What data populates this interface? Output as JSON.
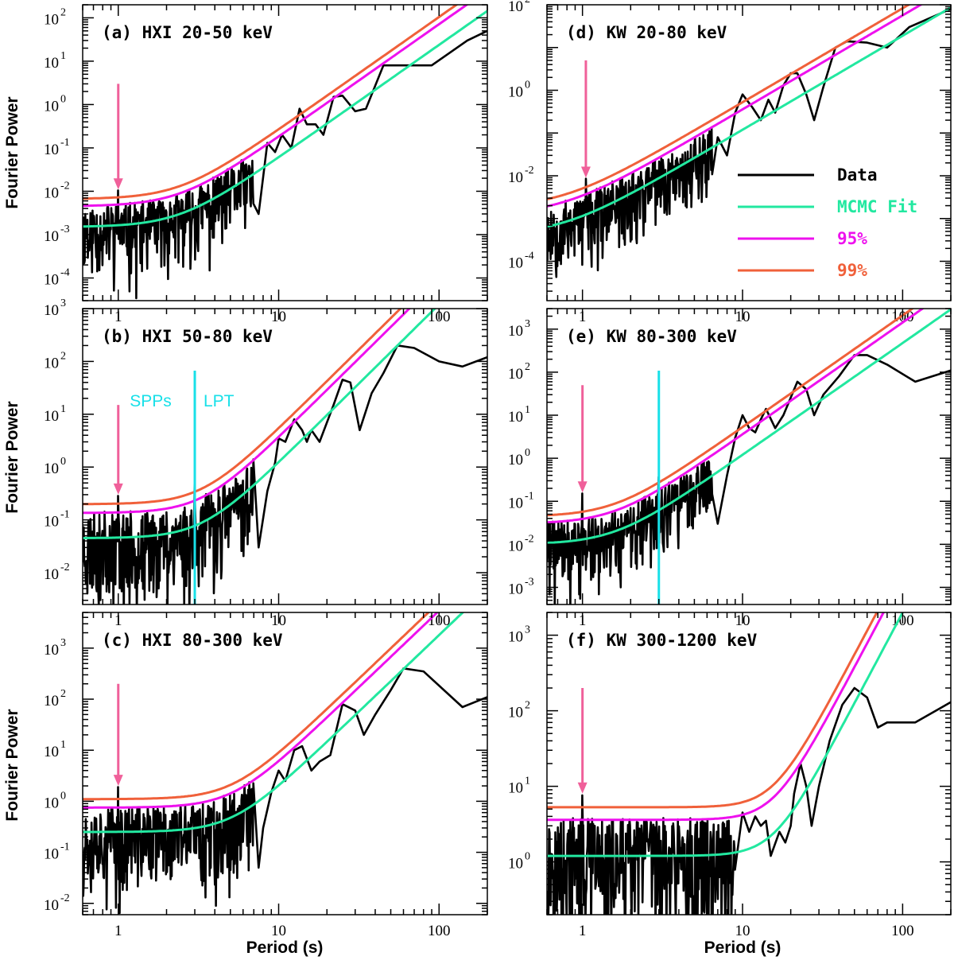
{
  "figure": {
    "xlabel": "Period (s)",
    "ylabel": "Fourier Power"
  },
  "colors": {
    "data": "#000000",
    "fit": "#22e8a0",
    "p95": "#ee11ee",
    "p99": "#f0603a",
    "arrow": "#f0609a",
    "boundary": "#18e0e8"
  },
  "legend": {
    "items": [
      {
        "label": "Data",
        "color": "#000000"
      },
      {
        "label": "MCMC Fit",
        "color": "#22e8a0"
      },
      {
        "label": "95%",
        "color": "#ee11ee"
      },
      {
        "label": "99%",
        "color": "#f0603a"
      }
    ]
  },
  "chart_data": [
    {
      "type": "line",
      "title": "(a) HXI 20-50 keV",
      "xscale": "log",
      "yscale": "log",
      "xlim": [
        0.6,
        200
      ],
      "ylim": [
        3e-05,
        200
      ],
      "xticks": [
        {
          "v": 1,
          "label": "1"
        },
        {
          "v": 10,
          "label": "10"
        },
        {
          "v": 100,
          "label": "100"
        }
      ],
      "yticks": [
        {
          "v": 0.0001,
          "b": "10",
          "e": "-4"
        },
        {
          "v": 0.001,
          "b": "10",
          "e": "-3"
        },
        {
          "v": 0.01,
          "b": "10",
          "e": "-2"
        },
        {
          "v": 0.1,
          "b": "10",
          "e": "-1"
        },
        {
          "v": 1,
          "b": "10",
          "e": "0"
        },
        {
          "v": 10,
          "b": "10",
          "e": "1"
        },
        {
          "v": 100,
          "b": "10",
          "e": "2"
        }
      ],
      "fit": {
        "C": 0.0015,
        "A": 0.00015,
        "alpha": 2.6
      },
      "arrow": {
        "x": 1.0,
        "from": 3,
        "to": 0.011
      },
      "data": {
        "noise": {
          "x0": 0.6,
          "x1": 7,
          "seed": 11
        },
        "peaks": [
          [
            7.5,
            0.003
          ],
          [
            8.5,
            0.13
          ],
          [
            9.5,
            0.08
          ],
          [
            10.5,
            0.2
          ],
          [
            12,
            0.1
          ],
          [
            13.5,
            0.8
          ],
          [
            15,
            0.35
          ],
          [
            17,
            0.35
          ],
          [
            19,
            0.2
          ],
          [
            22,
            1.5
          ],
          [
            25,
            1.6
          ],
          [
            30,
            0.7
          ],
          [
            35,
            0.8
          ],
          [
            45,
            8
          ],
          [
            60,
            8
          ],
          [
            80,
            8
          ],
          [
            90,
            8
          ],
          [
            150,
            30
          ],
          [
            200,
            50
          ]
        ]
      }
    },
    {
      "type": "line",
      "title": "(b) HXI 50-80 keV",
      "xscale": "log",
      "yscale": "log",
      "xlim": [
        0.6,
        200
      ],
      "ylim": [
        0.0025,
        1000
      ],
      "xticks": [
        {
          "v": 1,
          "label": "1"
        },
        {
          "v": 10,
          "label": "10"
        },
        {
          "v": 100,
          "label": "100"
        }
      ],
      "yticks": [
        {
          "v": 0.01,
          "b": "10",
          "e": "-2"
        },
        {
          "v": 0.1,
          "b": "10",
          "e": "-1"
        },
        {
          "v": 1,
          "b": "10",
          "e": "0"
        },
        {
          "v": 10,
          "b": "10",
          "e": "1"
        },
        {
          "v": 100,
          "b": "10",
          "e": "2"
        },
        {
          "v": 1000,
          "b": "10",
          "e": "3"
        }
      ],
      "fit": {
        "C": 0.045,
        "A": 0.0012,
        "alpha": 3.0
      },
      "arrow": {
        "x": 1.0,
        "from": 15,
        "to": 0.3
      },
      "vline": {
        "x": 3.0
      },
      "annotations": [
        {
          "text": "SPPs",
          "x": 1.18,
          "y": 14
        },
        {
          "text": "LPT",
          "x": 3.4,
          "y": 14
        }
      ],
      "data": {
        "noise": {
          "x0": 0.6,
          "x1": 7,
          "seed": 23
        },
        "peaks": [
          [
            7.5,
            0.03
          ],
          [
            8.5,
            0.35
          ],
          [
            9.5,
            1.2
          ],
          [
            10,
            3.5
          ],
          [
            11,
            3
          ],
          [
            12.5,
            8
          ],
          [
            14,
            5
          ],
          [
            15,
            3
          ],
          [
            16,
            5
          ],
          [
            18,
            3
          ],
          [
            22,
            15
          ],
          [
            25,
            45
          ],
          [
            28,
            40
          ],
          [
            32,
            5
          ],
          [
            38,
            25
          ],
          [
            45,
            60
          ],
          [
            55,
            200
          ],
          [
            70,
            180
          ],
          [
            100,
            100
          ],
          [
            140,
            80
          ],
          [
            200,
            120
          ]
        ]
      }
    },
    {
      "type": "line",
      "title": "(c) HXI 80-300 keV",
      "xscale": "log",
      "yscale": "log",
      "xlim": [
        0.6,
        200
      ],
      "ylim": [
        0.006,
        5000
      ],
      "xticks": [
        {
          "v": 1,
          "label": "1"
        },
        {
          "v": 10,
          "label": "10"
        },
        {
          "v": 100,
          "label": "100"
        }
      ],
      "yticks": [
        {
          "v": 0.01,
          "b": "10",
          "e": "-2"
        },
        {
          "v": 0.1,
          "b": "10",
          "e": "-1"
        },
        {
          "v": 1,
          "b": "10",
          "e": "0"
        },
        {
          "v": 10,
          "b": "10",
          "e": "1"
        },
        {
          "v": 100,
          "b": "10",
          "e": "2"
        },
        {
          "v": 1000,
          "b": "10",
          "e": "3"
        }
      ],
      "fit": {
        "C": 0.25,
        "A": 0.0018,
        "alpha": 3.0
      },
      "arrow": {
        "x": 1.0,
        "from": 200,
        "to": 2.0
      },
      "data": {
        "noise": {
          "x0": 0.6,
          "x1": 7,
          "seed": 37
        },
        "peaks": [
          [
            7.5,
            0.05
          ],
          [
            8,
            0.3
          ],
          [
            9,
            1.5
          ],
          [
            10,
            4
          ],
          [
            11,
            2.5
          ],
          [
            12.5,
            10
          ],
          [
            14,
            12
          ],
          [
            16,
            4
          ],
          [
            18,
            6
          ],
          [
            21,
            8
          ],
          [
            25,
            80
          ],
          [
            30,
            60
          ],
          [
            34,
            20
          ],
          [
            40,
            50
          ],
          [
            50,
            150
          ],
          [
            60,
            400
          ],
          [
            80,
            350
          ],
          [
            140,
            70
          ],
          [
            200,
            110
          ]
        ]
      }
    },
    {
      "type": "line",
      "title": "(d) KW 20-80 keV",
      "xscale": "log",
      "yscale": "log",
      "xlim": [
        0.6,
        200
      ],
      "ylim": [
        1.2e-05,
        100
      ],
      "xticks": [
        {
          "v": 1,
          "label": "1"
        },
        {
          "v": 10,
          "label": "10"
        },
        {
          "v": 100,
          "label": "100"
        }
      ],
      "yticks": [
        {
          "v": 0.0001,
          "b": "10",
          "e": "-4"
        },
        {
          "v": 0.01,
          "b": "10",
          "e": "-2"
        },
        {
          "v": 1,
          "b": "10",
          "e": "0"
        },
        {
          "v": 100,
          "b": "10",
          "e": "2"
        }
      ],
      "fit": {
        "C": 0.0004,
        "A": 0.00075,
        "alpha": 2.2
      },
      "arrow": {
        "x": 1.05,
        "from": 5,
        "to": 0.009
      },
      "data": {
        "noise": {
          "x0": 0.6,
          "x1": 6.5,
          "seed": 53
        },
        "peaks": [
          [
            7,
            0.08
          ],
          [
            8,
            0.03
          ],
          [
            9,
            0.3
          ],
          [
            10,
            0.8
          ],
          [
            11.5,
            0.4
          ],
          [
            13,
            0.2
          ],
          [
            14.5,
            0.6
          ],
          [
            16,
            0.3
          ],
          [
            18,
            1.3
          ],
          [
            20,
            2.5
          ],
          [
            22,
            2.5
          ],
          [
            25,
            0.8
          ],
          [
            28,
            0.2
          ],
          [
            32,
            1.2
          ],
          [
            38,
            10
          ],
          [
            45,
            14
          ],
          [
            60,
            13
          ],
          [
            80,
            10
          ],
          [
            110,
            30
          ],
          [
            200,
            80
          ]
        ]
      }
    },
    {
      "type": "line",
      "title": "(e) KW 80-300 keV",
      "xscale": "log",
      "yscale": "log",
      "xlim": [
        0.6,
        200
      ],
      "ylim": [
        0.0004,
        3000
      ],
      "xticks": [
        {
          "v": 1,
          "label": "1"
        },
        {
          "v": 10,
          "label": "10"
        },
        {
          "v": 100,
          "label": "100"
        }
      ],
      "yticks": [
        {
          "v": 0.001,
          "b": "10",
          "e": "-3"
        },
        {
          "v": 0.01,
          "b": "10",
          "e": "-2"
        },
        {
          "v": 0.1,
          "b": "10",
          "e": "-1"
        },
        {
          "v": 1,
          "b": "10",
          "e": "0"
        },
        {
          "v": 10,
          "b": "10",
          "e": "1"
        },
        {
          "v": 100,
          "b": "10",
          "e": "2"
        },
        {
          "v": 1000,
          "b": "10",
          "e": "3"
        }
      ],
      "fit": {
        "C": 0.01,
        "A": 0.003,
        "alpha": 2.6
      },
      "arrow": {
        "x": 1.0,
        "from": 50,
        "to": 0.16
      },
      "vline": {
        "x": 3.0
      },
      "data": {
        "noise": {
          "x0": 0.6,
          "x1": 6.5,
          "seed": 71
        },
        "peaks": [
          [
            7,
            0.03
          ],
          [
            8,
            0.4
          ],
          [
            9,
            3
          ],
          [
            10,
            10
          ],
          [
            11,
            5
          ],
          [
            12,
            4
          ],
          [
            13,
            8
          ],
          [
            14,
            14
          ],
          [
            16,
            5
          ],
          [
            18,
            10
          ],
          [
            22,
            60
          ],
          [
            25,
            40
          ],
          [
            28,
            10
          ],
          [
            32,
            30
          ],
          [
            40,
            80
          ],
          [
            50,
            250
          ],
          [
            60,
            250
          ],
          [
            80,
            150
          ],
          [
            120,
            60
          ],
          [
            200,
            110
          ]
        ]
      }
    },
    {
      "type": "line",
      "title": "(f) KW 300-1200 keV",
      "xscale": "log",
      "yscale": "log",
      "xlim": [
        0.6,
        200
      ],
      "ylim": [
        0.2,
        2000
      ],
      "xticks": [
        {
          "v": 1,
          "label": "1"
        },
        {
          "v": 10,
          "label": "10"
        },
        {
          "v": 100,
          "label": "100"
        }
      ],
      "yticks": [
        {
          "v": 1,
          "b": "10",
          "e": "0"
        },
        {
          "v": 10,
          "b": "10",
          "e": "1"
        },
        {
          "v": 100,
          "b": "10",
          "e": "2"
        },
        {
          "v": 1000,
          "b": "10",
          "e": "3"
        }
      ],
      "fit": {
        "C": 1.2,
        "A": 2e-05,
        "alpha": 4.0
      },
      "arrow": {
        "x": 1.0,
        "from": 200,
        "to": 8
      },
      "data": {
        "noise": {
          "x0": 0.6,
          "x1": 9,
          "seed": 97
        },
        "peaks": [
          [
            10,
            4.5
          ],
          [
            11,
            2.5
          ],
          [
            12,
            4
          ],
          [
            13,
            3
          ],
          [
            14,
            3.5
          ],
          [
            15,
            1.2
          ],
          [
            17,
            2.5
          ],
          [
            18.5,
            1.8
          ],
          [
            20,
            3
          ],
          [
            21,
            8
          ],
          [
            23,
            20
          ],
          [
            25,
            10
          ],
          [
            27,
            3
          ],
          [
            30,
            10
          ],
          [
            35,
            40
          ],
          [
            42,
            120
          ],
          [
            50,
            200
          ],
          [
            60,
            150
          ],
          [
            70,
            60
          ],
          [
            80,
            70
          ],
          [
            120,
            70
          ],
          [
            200,
            130
          ]
        ]
      }
    }
  ]
}
